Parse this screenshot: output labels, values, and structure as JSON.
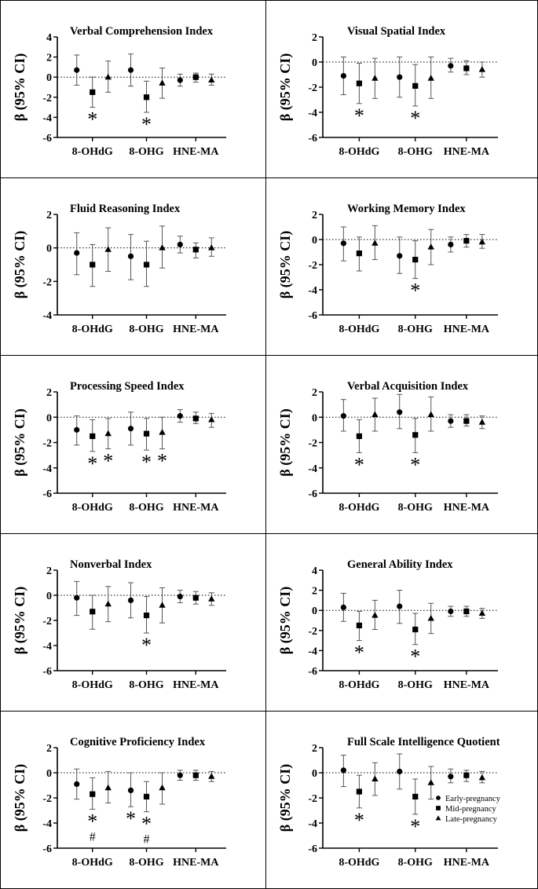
{
  "series_names": [
    "Early-pregnancy",
    "Mid-pregnancy",
    "Late-pregnancy"
  ],
  "categories": [
    "8-OHdG",
    "8-OHG",
    "HNE-MA"
  ],
  "y_label": "β (95% CI)",
  "chart_data": [
    {
      "type": "errorbar",
      "title": "Verbal Comprehension Index",
      "ylim": [
        -6,
        4
      ],
      "yticks": [
        4,
        2,
        0,
        -2,
        -4,
        -6
      ],
      "series": [
        {
          "name": "Early-pregnancy",
          "values": [
            0.7,
            0.7,
            -0.3
          ],
          "lower": [
            -0.8,
            -0.9,
            -0.9
          ],
          "upper": [
            2.2,
            2.3,
            0.3
          ]
        },
        {
          "name": "Mid-pregnancy",
          "values": [
            -1.5,
            -2.0,
            0.0
          ],
          "lower": [
            -3.0,
            -3.5,
            -0.5
          ],
          "upper": [
            0.0,
            -0.4,
            0.4
          ]
        },
        {
          "name": "Late-pregnancy",
          "values": [
            0.0,
            -0.6,
            -0.3
          ],
          "lower": [
            -1.5,
            -2.1,
            -0.8
          ],
          "upper": [
            1.6,
            0.9,
            0.3
          ]
        }
      ],
      "markers": [
        {
          "series": 1,
          "category": 0,
          "text": "*"
        },
        {
          "series": 1,
          "category": 1,
          "text": "*"
        }
      ]
    },
    {
      "type": "errorbar",
      "title": "Visual Spatial Index",
      "ylim": [
        -6,
        2
      ],
      "yticks": [
        2,
        0,
        -2,
        -4,
        -6
      ],
      "series": [
        {
          "name": "Early-pregnancy",
          "values": [
            -1.1,
            -1.2,
            -0.3
          ],
          "lower": [
            -2.6,
            -2.8,
            -0.8
          ],
          "upper": [
            0.4,
            0.4,
            0.3
          ]
        },
        {
          "name": "Mid-pregnancy",
          "values": [
            -1.7,
            -1.9,
            -0.5
          ],
          "lower": [
            -3.3,
            -3.5,
            -1.0
          ],
          "upper": [
            -0.1,
            -0.2,
            0.1
          ]
        },
        {
          "name": "Late-pregnancy",
          "values": [
            -1.3,
            -1.3,
            -0.6
          ],
          "lower": [
            -2.9,
            -2.9,
            -1.2
          ],
          "upper": [
            0.3,
            0.4,
            0.0
          ]
        }
      ],
      "markers": [
        {
          "series": 1,
          "category": 0,
          "text": "*"
        },
        {
          "series": 1,
          "category": 1,
          "text": "*"
        }
      ]
    },
    {
      "type": "errorbar",
      "title": "Fluid Reasoning Index",
      "ylim": [
        -4,
        2
      ],
      "yticks": [
        2,
        0,
        -2,
        -4
      ],
      "series": [
        {
          "name": "Early-pregnancy",
          "values": [
            -0.3,
            -0.5,
            0.2
          ],
          "lower": [
            -1.6,
            -1.9,
            -0.3
          ],
          "upper": [
            0.9,
            0.8,
            0.7
          ]
        },
        {
          "name": "Mid-pregnancy",
          "values": [
            -1.0,
            -1.0,
            -0.1
          ],
          "lower": [
            -2.3,
            -2.3,
            -0.6
          ],
          "upper": [
            0.2,
            0.4,
            0.3
          ]
        },
        {
          "name": "Late-pregnancy",
          "values": [
            -0.1,
            0.0,
            0.0
          ],
          "lower": [
            -1.4,
            -1.2,
            -0.5
          ],
          "upper": [
            1.2,
            1.3,
            0.6
          ]
        }
      ],
      "markers": []
    },
    {
      "type": "errorbar",
      "title": "Working Memory Index",
      "ylim": [
        -6,
        2
      ],
      "yticks": [
        2,
        0,
        -2,
        -4,
        -6
      ],
      "series": [
        {
          "name": "Early-pregnancy",
          "values": [
            -0.3,
            -1.3,
            -0.4
          ],
          "lower": [
            -1.7,
            -2.7,
            -1.0
          ],
          "upper": [
            1.0,
            0.2,
            0.2
          ]
        },
        {
          "name": "Mid-pregnancy",
          "values": [
            -1.1,
            -1.6,
            -0.1
          ],
          "lower": [
            -2.5,
            -3.1,
            -0.6
          ],
          "upper": [
            0.2,
            -0.1,
            0.4
          ]
        },
        {
          "name": "Late-pregnancy",
          "values": [
            -0.3,
            -0.6,
            -0.2
          ],
          "lower": [
            -1.6,
            -2.0,
            -0.7
          ],
          "upper": [
            1.1,
            0.8,
            0.4
          ]
        }
      ],
      "markers": [
        {
          "series": 1,
          "category": 1,
          "text": "*"
        }
      ]
    },
    {
      "type": "errorbar",
      "title": "Processing Speed Index",
      "ylim": [
        -6,
        2
      ],
      "yticks": [
        2,
        0,
        -2,
        -4,
        -6
      ],
      "series": [
        {
          "name": "Early-pregnancy",
          "values": [
            -1.0,
            -0.9,
            0.1
          ],
          "lower": [
            -2.2,
            -2.2,
            -0.4
          ],
          "upper": [
            0.1,
            0.4,
            0.6
          ]
        },
        {
          "name": "Mid-pregnancy",
          "values": [
            -1.5,
            -1.3,
            -0.1
          ],
          "lower": [
            -2.7,
            -2.6,
            -0.5
          ],
          "upper": [
            -0.2,
            -0.1,
            0.4
          ]
        },
        {
          "name": "Late-pregnancy",
          "values": [
            -1.3,
            -1.2,
            -0.2
          ],
          "lower": [
            -2.5,
            -2.5,
            -0.8
          ],
          "upper": [
            -0.1,
            0.0,
            0.3
          ]
        }
      ],
      "markers": [
        {
          "series": 1,
          "category": 0,
          "text": "*"
        },
        {
          "series": 2,
          "category": 0,
          "text": "*"
        },
        {
          "series": 1,
          "category": 1,
          "text": "*"
        },
        {
          "series": 2,
          "category": 1,
          "text": "*"
        }
      ]
    },
    {
      "type": "errorbar",
      "title": "Verbal Acquisition Index",
      "ylim": [
        -6,
        2
      ],
      "yticks": [
        2,
        0,
        -2,
        -4,
        -6
      ],
      "series": [
        {
          "name": "Early-pregnancy",
          "values": [
            0.1,
            0.4,
            -0.3
          ],
          "lower": [
            -1.1,
            -0.9,
            -0.8
          ],
          "upper": [
            1.4,
            1.8,
            0.2
          ]
        },
        {
          "name": "Mid-pregnancy",
          "values": [
            -1.5,
            -1.4,
            -0.3
          ],
          "lower": [
            -2.8,
            -2.8,
            -0.7
          ],
          "upper": [
            -0.2,
            -0.1,
            0.2
          ]
        },
        {
          "name": "Late-pregnancy",
          "values": [
            0.2,
            0.2,
            -0.4
          ],
          "lower": [
            -1.1,
            -1.1,
            -0.9
          ],
          "upper": [
            1.5,
            1.6,
            0.1
          ]
        }
      ],
      "markers": [
        {
          "series": 1,
          "category": 0,
          "text": "*"
        },
        {
          "series": 1,
          "category": 1,
          "text": "*"
        }
      ]
    },
    {
      "type": "errorbar",
      "title": "Nonverbal Index",
      "ylim": [
        -6,
        2
      ],
      "yticks": [
        2,
        0,
        -2,
        -4,
        -6
      ],
      "series": [
        {
          "name": "Early-pregnancy",
          "values": [
            -0.2,
            -0.4,
            -0.1
          ],
          "lower": [
            -1.6,
            -1.8,
            -0.6
          ],
          "upper": [
            1.1,
            1.0,
            0.4
          ]
        },
        {
          "name": "Mid-pregnancy",
          "values": [
            -1.3,
            -1.6,
            -0.2
          ],
          "lower": [
            -2.7,
            -3.0,
            -0.7
          ],
          "upper": [
            0.0,
            -0.1,
            0.3
          ]
        },
        {
          "name": "Late-pregnancy",
          "values": [
            -0.7,
            -0.8,
            -0.3
          ],
          "lower": [
            -2.1,
            -2.2,
            -0.8
          ],
          "upper": [
            0.7,
            0.6,
            0.2
          ]
        }
      ],
      "markers": [
        {
          "series": 1,
          "category": 1,
          "text": "*"
        }
      ]
    },
    {
      "type": "errorbar",
      "title": "General Ability Index",
      "ylim": [
        -6,
        4
      ],
      "yticks": [
        4,
        2,
        0,
        -2,
        -4,
        -6
      ],
      "series": [
        {
          "name": "Early-pregnancy",
          "values": [
            0.3,
            0.4,
            -0.1
          ],
          "lower": [
            -1.1,
            -1.3,
            -0.6
          ],
          "upper": [
            1.7,
            2.0,
            0.4
          ]
        },
        {
          "name": "Mid-pregnancy",
          "values": [
            -1.5,
            -1.9,
            -0.1
          ],
          "lower": [
            -3.0,
            -3.4,
            -0.6
          ],
          "upper": [
            -0.1,
            -0.3,
            0.4
          ]
        },
        {
          "name": "Late-pregnancy",
          "values": [
            -0.5,
            -0.8,
            -0.3
          ],
          "lower": [
            -1.9,
            -2.3,
            -0.8
          ],
          "upper": [
            1.0,
            0.7,
            0.2
          ]
        }
      ],
      "markers": [
        {
          "series": 1,
          "category": 0,
          "text": "*"
        },
        {
          "series": 1,
          "category": 1,
          "text": "*"
        }
      ]
    },
    {
      "type": "errorbar",
      "title": "Cognitive Proficiency Index",
      "ylim": [
        -6,
        2
      ],
      "yticks": [
        2,
        0,
        -2,
        -4,
        -6
      ],
      "series": [
        {
          "name": "Early-pregnancy",
          "values": [
            -0.9,
            -1.4,
            -0.2
          ],
          "lower": [
            -2.1,
            -2.7,
            -0.6
          ],
          "upper": [
            0.3,
            0.0,
            0.2
          ]
        },
        {
          "name": "Mid-pregnancy",
          "values": [
            -1.7,
            -1.9,
            -0.2
          ],
          "lower": [
            -2.9,
            -3.1,
            -0.6
          ],
          "upper": [
            -0.4,
            -0.7,
            0.2
          ]
        },
        {
          "name": "Late-pregnancy",
          "values": [
            -1.2,
            -1.2,
            -0.3
          ],
          "lower": [
            -2.4,
            -2.5,
            -0.7
          ],
          "upper": [
            0.1,
            0.0,
            0.1
          ]
        }
      ],
      "markers": [
        {
          "series": 1,
          "category": 0,
          "text": "*"
        },
        {
          "series": 1,
          "category": 0,
          "text": "#"
        },
        {
          "series": 0,
          "category": 1,
          "text": "*"
        },
        {
          "series": 1,
          "category": 1,
          "text": "*"
        },
        {
          "series": 1,
          "category": 1,
          "text": "#"
        }
      ]
    },
    {
      "type": "errorbar",
      "title": "Full Scale Intelligence Quotient",
      "ylim": [
        -6,
        2
      ],
      "yticks": [
        2,
        0,
        -2,
        -4,
        -6
      ],
      "series": [
        {
          "name": "Early-pregnancy",
          "values": [
            0.2,
            0.1,
            -0.3
          ],
          "lower": [
            -1.1,
            -1.3,
            -0.8
          ],
          "upper": [
            1.4,
            1.5,
            0.3
          ]
        },
        {
          "name": "Mid-pregnancy",
          "values": [
            -1.5,
            -1.9,
            -0.2
          ],
          "lower": [
            -2.8,
            -3.3,
            -0.7
          ],
          "upper": [
            -0.2,
            -0.5,
            0.2
          ]
        },
        {
          "name": "Late-pregnancy",
          "values": [
            -0.5,
            -0.8,
            -0.4
          ],
          "lower": [
            -1.8,
            -2.1,
            -0.8
          ],
          "upper": [
            0.8,
            0.5,
            0.1
          ]
        }
      ],
      "markers": [
        {
          "series": 1,
          "category": 0,
          "text": "*"
        },
        {
          "series": 1,
          "category": 1,
          "text": "*"
        }
      ],
      "legend": "bottom-right"
    }
  ]
}
